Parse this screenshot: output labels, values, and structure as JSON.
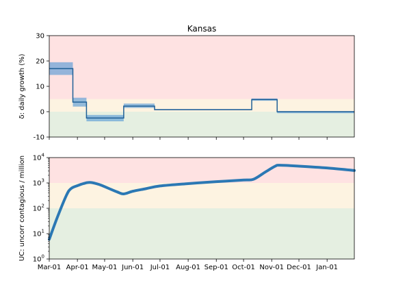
{
  "chart_data": [
    {
      "type": "line",
      "title": "Kansas",
      "ylabel": "δ: daily growth (%)",
      "xlim": [
        "2020-03-01",
        "2021-01-31"
      ],
      "ylim": [
        -10,
        30
      ],
      "yticks": [
        -10,
        0,
        10,
        20,
        30
      ],
      "bands": [
        {
          "from": -10,
          "to": 0,
          "color": "#e5efe1"
        },
        {
          "from": 0,
          "to": 5,
          "color": "#fdf3e1"
        },
        {
          "from": 5,
          "to": 30,
          "color": "#fee2e2"
        }
      ],
      "series": [
        {
          "line_color": "#1f5f96",
          "fill_color": "#5b9bd5",
          "steps": [
            {
              "start": "2020-03-01",
              "end": "2020-03-27",
              "value": 17,
              "low": 14.5,
              "high": 19.5
            },
            {
              "start": "2020-03-27",
              "end": "2020-04-11",
              "value": 3.8,
              "low": 2.0,
              "high": 5.5
            },
            {
              "start": "2020-04-11",
              "end": "2020-05-22",
              "value": -2.5,
              "low": -3.8,
              "high": -1.3
            },
            {
              "start": "2020-05-22",
              "end": "2020-06-25",
              "value": 2.2,
              "low": 1.5,
              "high": 3.2
            },
            {
              "start": "2020-06-25",
              "end": "2020-10-10",
              "value": 0.8,
              "low": 0.6,
              "high": 1.0
            },
            {
              "start": "2020-10-10",
              "end": "2020-11-07",
              "value": 4.8,
              "low": 4.3,
              "high": 5.2
            },
            {
              "start": "2020-11-07",
              "end": "2021-01-31",
              "value": 0,
              "low": -0.6,
              "high": 0.2
            }
          ]
        }
      ]
    },
    {
      "type": "line",
      "ylabel": "UC: uncorr contagious / million",
      "yscale": "log",
      "xlim": [
        "2020-03-01",
        "2021-01-31"
      ],
      "ylim": [
        1,
        10000
      ],
      "yticks": [
        1,
        10,
        100,
        1000,
        10000
      ],
      "yticklabels": [
        "10^0",
        "10^1",
        "10^2",
        "10^3",
        "10^4"
      ],
      "xticks": [
        "2020-03-01",
        "2020-04-01",
        "2020-05-01",
        "2020-06-01",
        "2020-07-01",
        "2020-08-01",
        "2020-09-01",
        "2020-10-01",
        "2020-11-01",
        "2020-12-01",
        "2021-01-01"
      ],
      "xticklabels": [
        "Mar-01",
        "Apr-01",
        "May-01",
        "Jun-01",
        "Jul-01",
        "Aug-01",
        "Sep-01",
        "Oct-01",
        "Nov-01",
        "Dec-01",
        "Jan-01"
      ],
      "bands": [
        {
          "from": 1,
          "to": 100,
          "color": "#e5efe1"
        },
        {
          "from": 100,
          "to": 1000,
          "color": "#fdf3e1"
        },
        {
          "from": 1000,
          "to": 10000,
          "color": "#fee2e2"
        }
      ],
      "series": [
        {
          "line_color": "#2b78b4",
          "x": [
            "2020-03-01",
            "2020-03-10",
            "2020-03-20",
            "2020-03-25",
            "2020-04-01",
            "2020-04-08",
            "2020-04-15",
            "2020-04-25",
            "2020-05-05",
            "2020-05-15",
            "2020-05-22",
            "2020-06-01",
            "2020-06-15",
            "2020-07-01",
            "2020-08-01",
            "2020-09-01",
            "2020-10-01",
            "2020-10-12",
            "2020-10-25",
            "2020-11-05",
            "2020-11-10",
            "2020-12-01",
            "2021-01-01",
            "2021-01-31"
          ],
          "y": [
            6,
            45,
            330,
            600,
            780,
            950,
            1050,
            870,
            620,
            440,
            370,
            470,
            590,
            760,
            940,
            1120,
            1300,
            1400,
            2700,
            4600,
            5000,
            4600,
            3900,
            3100
          ]
        }
      ]
    }
  ]
}
